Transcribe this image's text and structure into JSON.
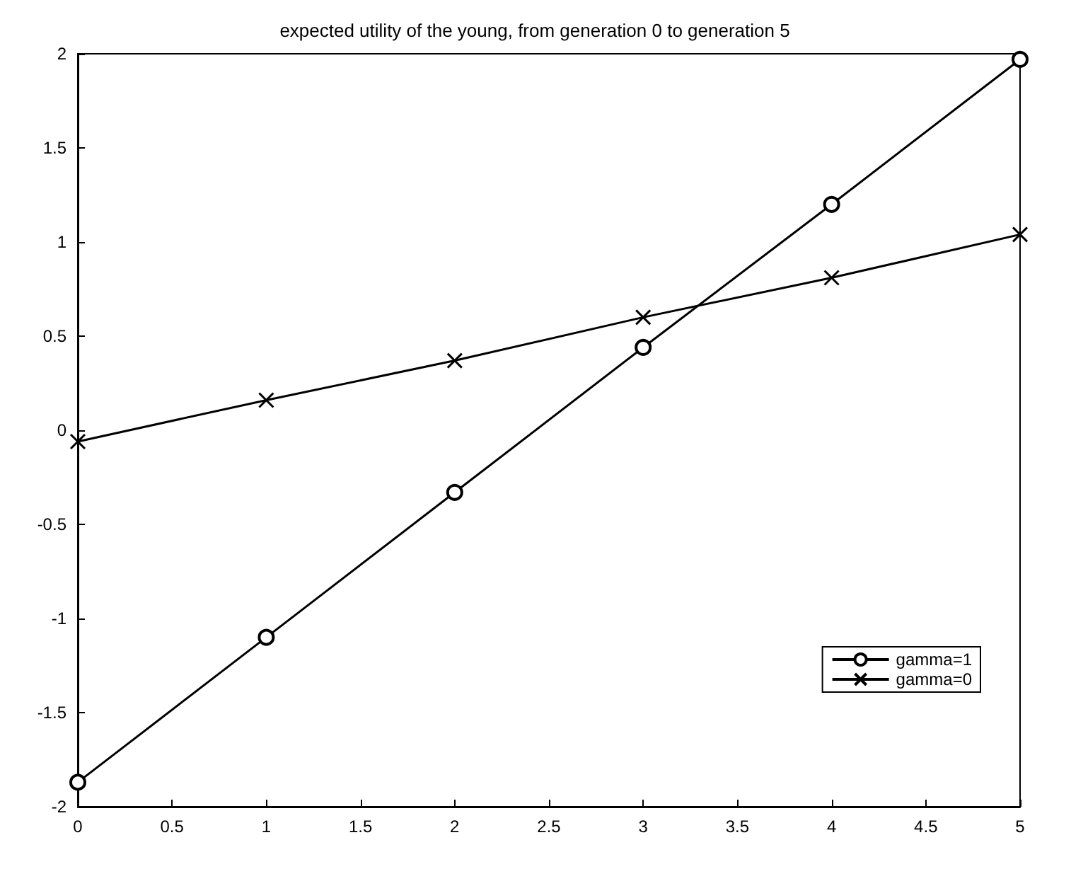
{
  "chart_data": {
    "type": "line",
    "title": "expected utility of the young, from generation 0 to generation 5",
    "x": [
      0,
      1,
      2,
      3,
      4,
      5
    ],
    "series": [
      {
        "name": "gamma=1",
        "color": "#000000",
        "marker": "circle",
        "values": [
          -1.87,
          -1.1,
          -0.33,
          0.44,
          1.2,
          1.97
        ]
      },
      {
        "name": "gamma=0",
        "color": "#000000",
        "marker": "cross",
        "values": [
          -0.06,
          0.16,
          0.37,
          0.6,
          0.81,
          1.04
        ]
      }
    ],
    "xlim": [
      0,
      5
    ],
    "xticks": [
      0,
      0.5,
      1,
      1.5,
      2,
      2.5,
      3,
      3.5,
      4,
      4.5,
      5
    ],
    "ylim": [
      -2,
      2
    ],
    "yticks": [
      -2,
      -1.5,
      -1,
      -0.5,
      0,
      0.5,
      1,
      1.5,
      2
    ],
    "grid": false,
    "legend": "bottom right",
    "line_style": "solid"
  }
}
